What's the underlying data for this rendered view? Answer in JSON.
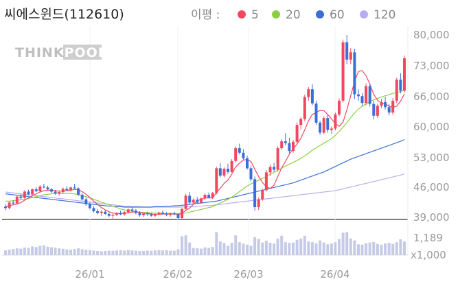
{
  "chart_data": {
    "type": "candlestick",
    "title": "씨에스윈드(112610)",
    "legend": {
      "label": "이평 :",
      "items": [
        {
          "name": "5",
          "color": "#f2475f"
        },
        {
          "name": "20",
          "color": "#8ccf45"
        },
        {
          "name": "60",
          "color": "#3b6fd6"
        },
        {
          "name": "120",
          "color": "#b6aef0"
        }
      ]
    },
    "watermark": "THINKPOOL",
    "y_ticks": [
      "80,000",
      "73,000",
      "66,000",
      "60,000",
      "53,000",
      "46,000",
      "39,000"
    ],
    "ylim": [
      39000,
      80000
    ],
    "volume_ticks": [
      "1,189",
      "x1,000"
    ],
    "x_ticks": [
      "26/01",
      "26/02",
      "26/03",
      "26/04"
    ],
    "colors": {
      "up": "#f2475f",
      "down": "#3b6fd6",
      "volume": "#c5cbe6"
    },
    "candles": [
      [
        41800,
        42300,
        41000,
        41500
      ],
      [
        41500,
        43000,
        41200,
        42700
      ],
      [
        42700,
        43200,
        42200,
        42500
      ],
      [
        42500,
        44200,
        42300,
        44000
      ],
      [
        44000,
        44600,
        43400,
        43700
      ],
      [
        43700,
        45400,
        43500,
        45100
      ],
      [
        45100,
        45500,
        44300,
        44500
      ],
      [
        44500,
        45800,
        44200,
        45600
      ],
      [
        45600,
        46100,
        45000,
        45200
      ],
      [
        45200,
        46500,
        45000,
        46200
      ],
      [
        46200,
        46800,
        45800,
        46000
      ],
      [
        46000,
        46400,
        45400,
        45600
      ],
      [
        45600,
        45900,
        44800,
        45100
      ],
      [
        45100,
        45500,
        44400,
        44700
      ],
      [
        44700,
        45300,
        44200,
        45000
      ],
      [
        45000,
        46000,
        44700,
        45700
      ],
      [
        45700,
        46300,
        45200,
        45400
      ],
      [
        45400,
        46200,
        45100,
        46000
      ],
      [
        46000,
        46800,
        45700,
        45800
      ],
      [
        45800,
        46000,
        44200,
        44400
      ],
      [
        44400,
        44800,
        43100,
        43400
      ],
      [
        43400,
        43800,
        42000,
        42300
      ],
      [
        42300,
        42800,
        41200,
        41500
      ],
      [
        41500,
        41900,
        40500,
        40800
      ],
      [
        40800,
        41300,
        40100,
        40400
      ],
      [
        40400,
        41000,
        39800,
        40700
      ],
      [
        40700,
        41100,
        40000,
        40200
      ],
      [
        40200,
        40600,
        39500,
        39800
      ],
      [
        39800,
        40300,
        39200,
        40000
      ],
      [
        40000,
        40600,
        39700,
        40400
      ],
      [
        40400,
        40900,
        39900,
        40100
      ],
      [
        40100,
        40800,
        39800,
        40600
      ],
      [
        40600,
        41400,
        40300,
        41200
      ],
      [
        41200,
        41700,
        40600,
        40900
      ],
      [
        40900,
        41300,
        40100,
        40400
      ],
      [
        40400,
        40800,
        39600,
        39900
      ],
      [
        39900,
        40500,
        39600,
        40300
      ],
      [
        40300,
        40700,
        39800,
        40100
      ],
      [
        40100,
        40500,
        39600,
        39800
      ],
      [
        39800,
        40400,
        39500,
        40200
      ],
      [
        40200,
        40700,
        39900,
        40500
      ],
      [
        40500,
        40900,
        40000,
        40200
      ],
      [
        40200,
        40600,
        39700,
        40000
      ],
      [
        40000,
        40500,
        39600,
        40300
      ],
      [
        40300,
        40700,
        39900,
        40100
      ],
      [
        40100,
        40300,
        39000,
        39300
      ],
      [
        39300,
        41500,
        39100,
        41300
      ],
      [
        41300,
        44600,
        41000,
        44200
      ],
      [
        44200,
        45000,
        42400,
        42700
      ],
      [
        42700,
        43600,
        42300,
        43300
      ],
      [
        43300,
        43900,
        42500,
        42700
      ],
      [
        42700,
        43800,
        42400,
        43600
      ],
      [
        43600,
        44700,
        43200,
        44400
      ],
      [
        44400,
        44900,
        43600,
        43800
      ],
      [
        43800,
        45000,
        43500,
        44800
      ],
      [
        44800,
        50500,
        44500,
        50200
      ],
      [
        50200,
        51300,
        48200,
        48600
      ],
      [
        48600,
        50400,
        48200,
        50100
      ],
      [
        50100,
        51200,
        49000,
        49400
      ],
      [
        49400,
        52200,
        49200,
        51800
      ],
      [
        51800,
        55000,
        51500,
        54600
      ],
      [
        54600,
        55600,
        53200,
        53600
      ],
      [
        53600,
        54400,
        52000,
        52400
      ],
      [
        52400,
        53000,
        49900,
        50200
      ],
      [
        50200,
        50800,
        47400,
        47800
      ],
      [
        47800,
        48400,
        40900,
        41700
      ],
      [
        41700,
        43800,
        41100,
        43400
      ],
      [
        43400,
        45700,
        43100,
        45400
      ],
      [
        45400,
        49800,
        45100,
        49300
      ],
      [
        49300,
        51000,
        48600,
        50500
      ],
      [
        50500,
        51400,
        49400,
        49900
      ],
      [
        49900,
        55000,
        49500,
        54600
      ],
      [
        54600,
        56600,
        54200,
        56100
      ],
      [
        56100,
        57900,
        55200,
        55700
      ],
      [
        55700,
        56900,
        53500,
        54000
      ],
      [
        54000,
        56400,
        53600,
        56000
      ],
      [
        56000,
        60200,
        55700,
        59700
      ],
      [
        59700,
        61400,
        58700,
        61000
      ],
      [
        61000,
        66300,
        60600,
        65800
      ],
      [
        65800,
        68000,
        65000,
        67500
      ],
      [
        67500,
        68600,
        64000,
        64400
      ],
      [
        64400,
        65000,
        59700,
        60200
      ],
      [
        60200,
        60600,
        57500,
        58000
      ],
      [
        58000,
        61600,
        57700,
        61200
      ],
      [
        61200,
        62000,
        58000,
        58600
      ],
      [
        58600,
        59400,
        57700,
        58900
      ],
      [
        58900,
        62400,
        58500,
        62000
      ],
      [
        62000,
        65500,
        61600,
        65000
      ],
      [
        65000,
        78400,
        64600,
        77800
      ],
      [
        77800,
        79400,
        73000,
        74000
      ],
      [
        74000,
        76500,
        73000,
        75600
      ],
      [
        75600,
        76400,
        65400,
        66400
      ],
      [
        66400,
        67500,
        65000,
        66000
      ],
      [
        66000,
        66700,
        63900,
        64500
      ],
      [
        64500,
        68800,
        64000,
        68200
      ],
      [
        68200,
        68700,
        63700,
        64300
      ],
      [
        64300,
        65000,
        60900,
        61700
      ],
      [
        61700,
        64400,
        61200,
        63900
      ],
      [
        63900,
        65400,
        63400,
        64700
      ],
      [
        64700,
        65900,
        63100,
        63600
      ],
      [
        63600,
        64300,
        61800,
        62400
      ],
      [
        62400,
        65600,
        61900,
        65000
      ],
      [
        65000,
        70000,
        64500,
        69600
      ],
      [
        69600,
        71000,
        66600,
        67200
      ],
      [
        67200,
        74900,
        66800,
        74300
      ]
    ],
    "volume": [
      260,
      300,
      340,
      380,
      360,
      420,
      400,
      480,
      450,
      520,
      540,
      470,
      440,
      410,
      380,
      350,
      320,
      300,
      340,
      380,
      330,
      300,
      270,
      250,
      230,
      210,
      230,
      250,
      240,
      260,
      270,
      250,
      280,
      260,
      240,
      220,
      230,
      250,
      240,
      260,
      280,
      260,
      270,
      250,
      240,
      320,
      1050,
      1100,
      700,
      400,
      380,
      360,
      430,
      400,
      460,
      1280,
      760,
      680,
      520,
      690,
      1100,
      720,
      640,
      580,
      520,
      1000,
      900,
      700,
      800,
      690,
      640,
      920,
      1080,
      720,
      680,
      700,
      850,
      920,
      1080,
      760,
      720,
      650,
      820,
      700,
      600,
      640,
      720,
      900,
      1250,
      1280,
      930,
      820,
      600,
      580,
      660,
      700,
      730,
      620,
      580,
      650,
      680,
      620,
      720,
      880,
      760
    ],
    "ma5": [
      41800,
      42000,
      42200,
      42400,
      42700,
      43200,
      43700,
      44200,
      44600,
      45000,
      45300,
      45400,
      45400,
      45300,
      45200,
      45200,
      45300,
      45400,
      45600,
      45500,
      45100,
      44500,
      43800,
      43000,
      42300,
      41600,
      41100,
      40700,
      40400,
      40300,
      40300,
      40300,
      40500,
      40600,
      40600,
      40500,
      40400,
      40300,
      40200,
      40100,
      40100,
      40200,
      40200,
      40200,
      40200,
      40100,
      40300,
      41000,
      41500,
      42300,
      43100,
      43400,
      43700,
      43700,
      43700,
      44900,
      45800,
      46900,
      47600,
      48900,
      50500,
      51300,
      52000,
      52100,
      51700,
      50000,
      48400,
      47100,
      46100,
      45800,
      46500,
      48400,
      50300,
      51700,
      53300,
      54500,
      55500,
      56800,
      58600,
      60600,
      62000,
      62400,
      62900,
      62800,
      62000,
      61000,
      60000,
      59400,
      60300,
      63000,
      66100,
      69200,
      71400,
      71600,
      70500,
      68600,
      66400,
      65100,
      64500,
      64300,
      63800,
      63600,
      63800,
      64900,
      66500
    ],
    "ma20": [
      43000,
      43000,
      43100,
      43200,
      43300,
      43400,
      43600,
      43800,
      44000,
      44200,
      44400,
      44500,
      44600,
      44700,
      44700,
      44700,
      44700,
      44700,
      44600,
      44400,
      44200,
      44000,
      43700,
      43400,
      43100,
      42800,
      42500,
      42200,
      41900,
      41600,
      41300,
      41100,
      40900,
      40800,
      40700,
      40600,
      40500,
      40500,
      40400,
      40400,
      40300,
      40300,
      40300,
      40300,
      40300,
      40300,
      40300,
      40400,
      40600,
      40800,
      41000,
      41200,
      41400,
      41600,
      41800,
      42200,
      42600,
      43000,
      43400,
      43900,
      44500,
      45100,
      45700,
      46300,
      46800,
      47200,
      47600,
      48000,
      48400,
      48900,
      49300,
      49800,
      50200,
      50700,
      51100,
      51500,
      51900,
      52400,
      52900,
      53500,
      54200,
      54700,
      55200,
      55700,
      56200,
      56700,
      57400,
      58300,
      59200,
      60200,
      61300,
      62300,
      63200,
      63800,
      64300,
      64800,
      65200,
      65500,
      65800,
      66100,
      66300,
      66600,
      66800,
      67000,
      67300
    ],
    "ma60": [
      44600,
      44500,
      44400,
      44300,
      44200,
      44100,
      44000,
      43900,
      43800,
      43700,
      43600,
      43500,
      43400,
      43300,
      43200,
      43100,
      43000,
      42900,
      42800,
      42700,
      42600,
      42500,
      42400,
      42300,
      42200,
      42100,
      42000,
      41900,
      41900,
      41800,
      41800,
      41700,
      41700,
      41700,
      41700,
      41700,
      41700,
      41700,
      41700,
      41800,
      41800,
      41800,
      41900,
      41900,
      42000,
      42000,
      42100,
      42200,
      42300,
      42400,
      42500,
      42600,
      42700,
      42800,
      42900,
      43000,
      43200,
      43400,
      43600,
      43800,
      44000,
      44200,
      44400,
      44600,
      44800,
      45000,
      45200,
      45400,
      45600,
      45800,
      46000,
      46200,
      46400,
      46600,
      46800,
      47000,
      47300,
      47600,
      47900,
      48200,
      48500,
      48800,
      49100,
      49400,
      49800,
      50200,
      50600,
      51000,
      51400,
      51800,
      52200,
      52500,
      52800,
      53100,
      53400,
      53700,
      54000,
      54300,
      54600,
      54900,
      55200,
      55500,
      55800,
      56100,
      56500
    ],
    "ma120": [
      45000,
      44900,
      44800,
      44700,
      44600,
      44500,
      44400,
      44300,
      44200,
      44100,
      44000,
      43900,
      43800,
      43700,
      43600,
      43500,
      43400,
      43300,
      43200,
      43100,
      43000,
      42900,
      42800,
      42700,
      42600,
      42500,
      42400,
      42300,
      42200,
      42100,
      42000,
      41900,
      41900,
      41800,
      41800,
      41800,
      41700,
      41700,
      41700,
      41700,
      41700,
      41700,
      41700,
      41700,
      41700,
      41700,
      41700,
      41800,
      41800,
      41800,
      41900,
      41900,
      42000,
      42000,
      42100,
      42200,
      42300,
      42400,
      42500,
      42600,
      42700,
      42800,
      42900,
      43000,
      43100,
      43200,
      43300,
      43400,
      43500,
      43600,
      43700,
      43800,
      43900,
      44000,
      44100,
      44200,
      44300,
      44400,
      44500,
      44600,
      44700,
      44800,
      44900,
      45000,
      45100,
      45200,
      45300,
      45500,
      45700,
      45900,
      46100,
      46300,
      46500,
      46700,
      46900,
      47100,
      47300,
      47500,
      47700,
      47900,
      48100,
      48300,
      48500,
      48700,
      49000
    ]
  }
}
